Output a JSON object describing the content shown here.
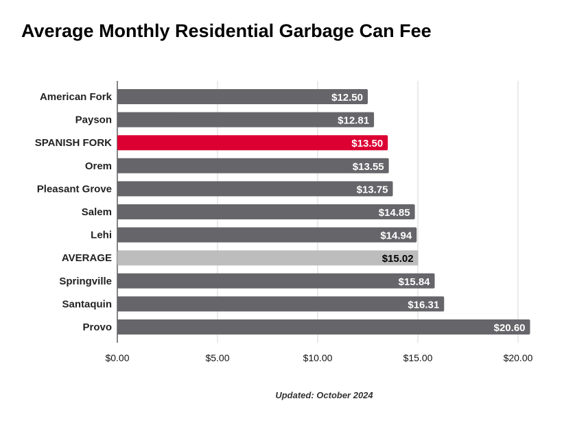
{
  "chart_data": {
    "type": "bar",
    "orientation": "horizontal",
    "title": "Average Monthly Residential Garbage Can Fee",
    "note": "Updated: October 2024",
    "categories": [
      "American Fork",
      "Payson",
      "SPANISH FORK",
      "Orem",
      "Pleasant Grove",
      "Salem",
      "Lehi",
      "AVERAGE",
      "Springville",
      "Santaquin",
      "Provo"
    ],
    "values": [
      12.5,
      12.81,
      13.5,
      13.55,
      13.75,
      14.85,
      14.94,
      15.02,
      15.84,
      16.31,
      20.6
    ],
    "data_labels": [
      "$12.50",
      "$12.81",
      "$13.50",
      "$13.55",
      "$13.75",
      "$14.85",
      "$14.94",
      "$15.02",
      "$15.84",
      "$16.31",
      "$20.60"
    ],
    "xlim": [
      0,
      20.6
    ],
    "xticks": [
      0,
      5,
      10,
      15,
      20
    ],
    "xtick_labels": [
      "$0.00",
      "$5.00",
      "$10.00",
      "$15.00",
      "$20.00"
    ],
    "xlabel": "",
    "ylabel": "",
    "grid": true,
    "colors": {
      "default": "#66666a",
      "highlight": "#dc0032",
      "average": "#bdbdbd",
      "grid": "#d6d6d6"
    },
    "highlight_index": 2,
    "average_index": 7
  }
}
